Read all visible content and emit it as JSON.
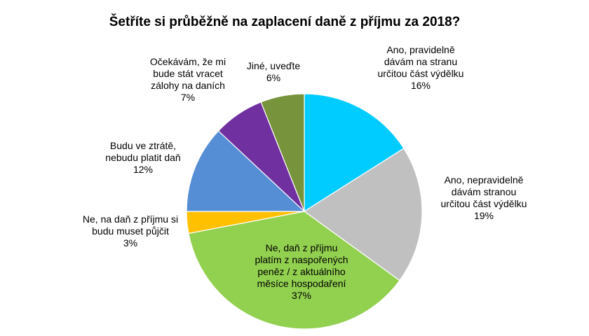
{
  "chart_data": {
    "type": "pie",
    "title": "Šetříte si průběžně na zaplacení daně z příjmu za 2018?",
    "slices": [
      {
        "lines": [
          "Ano, pravidelně",
          "dávám na stranu",
          "určitou část výdělku"
        ],
        "percent_label": "16%",
        "value": 16,
        "color": "#00CCFF"
      },
      {
        "lines": [
          "Ano, nepravidelně",
          "dávám stranou",
          "určitou část výdělku"
        ],
        "percent_label": "19%",
        "value": 19,
        "color": "#C0C0C0"
      },
      {
        "lines": [
          "Ne, daň z příjmu",
          "platím z naspořených",
          "peněz / z aktuálního",
          "měsíce hospodaření"
        ],
        "percent_label": "37%",
        "value": 37,
        "color": "#92D050"
      },
      {
        "lines": [
          "Ne, na daň z příjmu si",
          "budu muset půjčit"
        ],
        "percent_label": "3%",
        "value": 3,
        "color": "#FFC000"
      },
      {
        "lines": [
          "Budu ve ztrátě,",
          "nebudu platit daň"
        ],
        "percent_label": "12%",
        "value": 12,
        "color": "#558ED5"
      },
      {
        "lines": [
          "Očekávám, že mi",
          "bude stát vracet",
          "zálohy na daních"
        ],
        "percent_label": "7%",
        "value": 7,
        "color": "#7030A0"
      },
      {
        "lines": [
          "Jiné, uveďte"
        ],
        "percent_label": "6%",
        "value": 6,
        "color": "#77933C"
      }
    ],
    "legend": "none",
    "grid": false
  }
}
